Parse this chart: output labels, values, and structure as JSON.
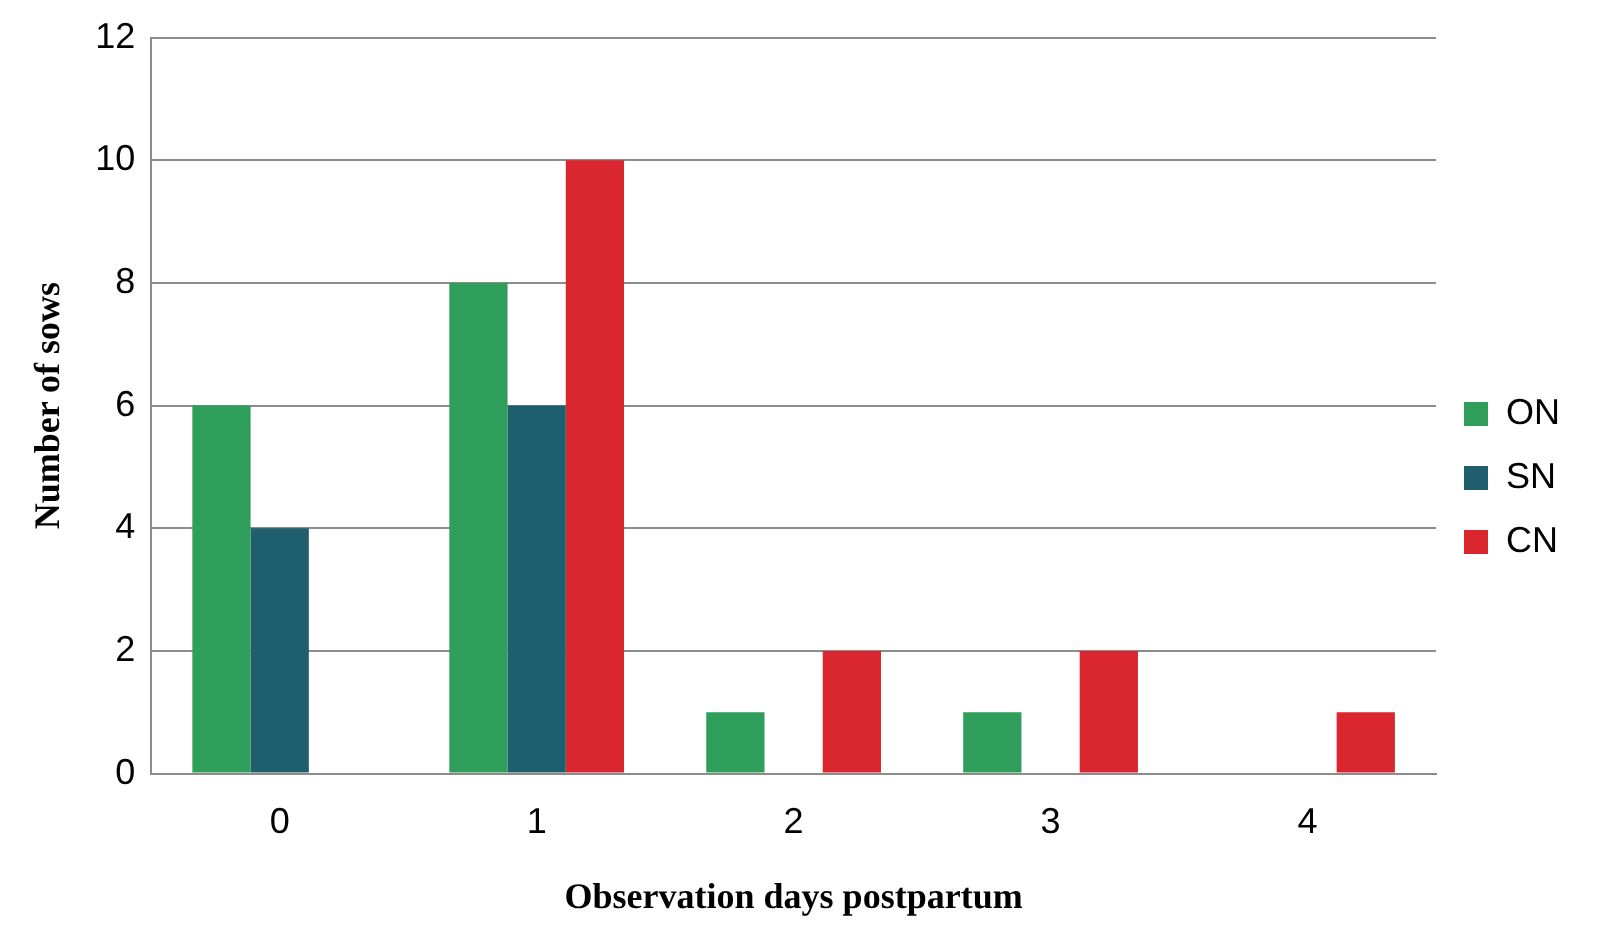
{
  "chart_data": {
    "type": "bar",
    "xlabel": "Observation days postpartum",
    "ylabel": "Number of sows",
    "categories": [
      "0",
      "1",
      "2",
      "3",
      "4"
    ],
    "series": [
      {
        "name": "ON",
        "color": "#2e9e5a",
        "values": [
          6,
          8,
          1,
          1,
          0
        ]
      },
      {
        "name": "SN",
        "color": "#1f5e6c",
        "values": [
          4,
          6,
          0,
          0,
          0
        ]
      },
      {
        "name": "CN",
        "color": "#d9262f",
        "values": [
          0,
          10,
          2,
          2,
          1
        ]
      }
    ],
    "ylim": [
      0,
      12
    ],
    "yticks": [
      0,
      2,
      4,
      6,
      8,
      10,
      12
    ],
    "grid": "y",
    "legend": "right"
  }
}
